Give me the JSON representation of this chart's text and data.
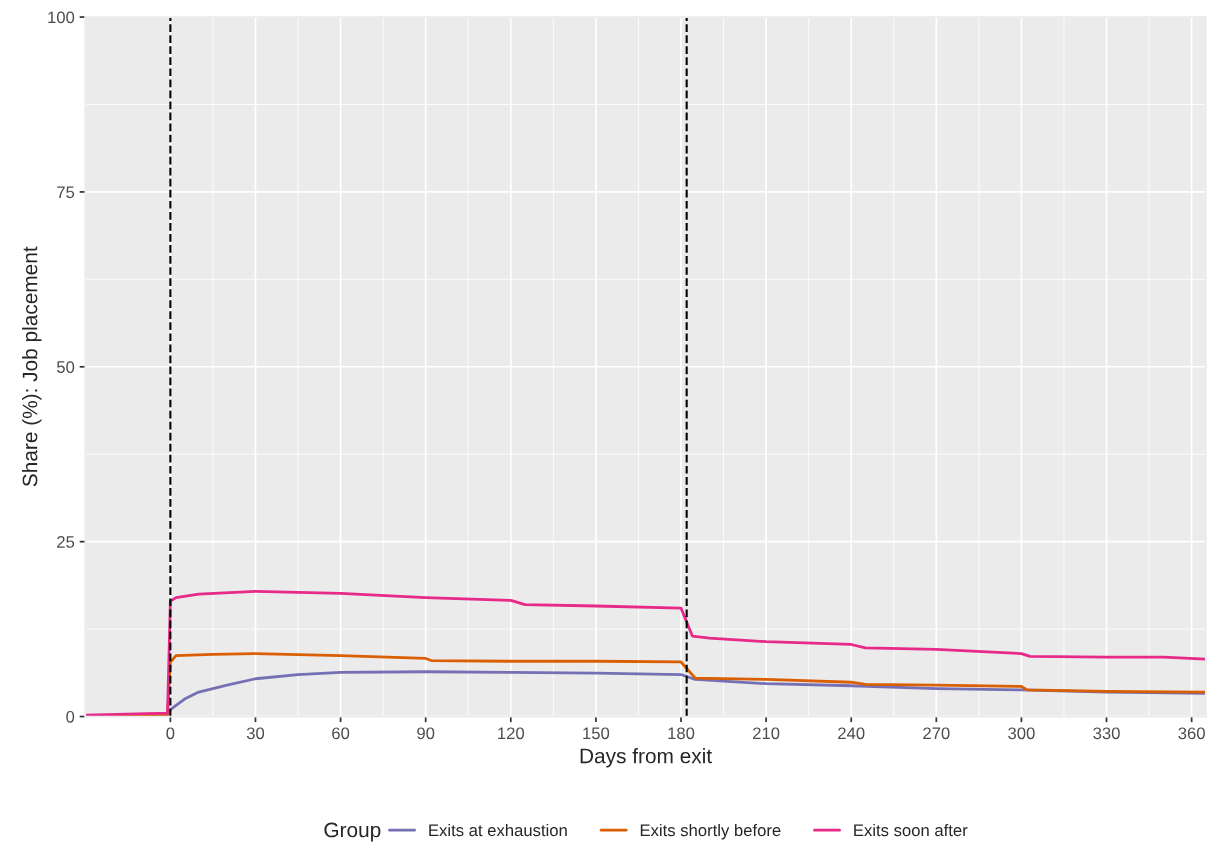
{
  "chart_data": {
    "type": "line",
    "xlabel": "Days from exit",
    "ylabel": "Share (%): Job placement",
    "legend_title": "Group",
    "legend": "bottom",
    "grid": true,
    "line_style": "solid",
    "xlim": [
      -30,
      365
    ],
    "xticks": [
      0,
      30,
      60,
      90,
      120,
      150,
      180,
      210,
      240,
      270,
      300,
      330,
      360
    ],
    "ylim": [
      0,
      100
    ],
    "yticks": [
      0,
      25,
      50,
      75,
      100
    ],
    "ref_lines": [
      {
        "axis": "x",
        "value": 0,
        "color": "#000000",
        "line_style": "dashed"
      },
      {
        "axis": "x",
        "value": 182,
        "color": "#000000",
        "line_style": "dashed"
      }
    ],
    "series": [
      {
        "name": "Exits at exhaustion",
        "color": "#7570b3",
        "x": [
          -30,
          -1,
          0,
          5,
          10,
          20,
          30,
          45,
          60,
          90,
          120,
          150,
          180,
          185,
          210,
          240,
          270,
          300,
          330,
          365
        ],
        "values": [
          0.1,
          0.2,
          1.0,
          2.5,
          3.5,
          4.5,
          5.4,
          6.0,
          6.3,
          6.4,
          6.3,
          6.2,
          6.0,
          5.3,
          4.7,
          4.4,
          4.0,
          3.8,
          3.5,
          3.3
        ]
      },
      {
        "name": "Exits shortly before",
        "color": "#d95f02",
        "x": [
          -30,
          -1,
          0,
          2,
          15,
          30,
          60,
          90,
          92,
          120,
          150,
          180,
          185,
          210,
          240,
          245,
          270,
          300,
          302,
          330,
          365
        ],
        "values": [
          0.1,
          0.3,
          7.8,
          8.7,
          8.9,
          9.0,
          8.7,
          8.3,
          8.0,
          7.9,
          7.9,
          7.8,
          5.5,
          5.3,
          4.9,
          4.6,
          4.5,
          4.3,
          3.8,
          3.6,
          3.5
        ]
      },
      {
        "name": "Exits soon after",
        "color": "#e7298a",
        "x": [
          -30,
          -1,
          0,
          2,
          10,
          30,
          60,
          90,
          120,
          125,
          150,
          180,
          181,
          184,
          190,
          210,
          240,
          245,
          270,
          300,
          303,
          330,
          350,
          365
        ],
        "values": [
          0.2,
          0.5,
          16.5,
          17.0,
          17.5,
          17.9,
          17.6,
          17.0,
          16.6,
          16.0,
          15.8,
          15.5,
          14.5,
          11.5,
          11.2,
          10.7,
          10.3,
          9.8,
          9.6,
          9.0,
          8.6,
          8.5,
          8.5,
          8.2
        ]
      }
    ]
  }
}
